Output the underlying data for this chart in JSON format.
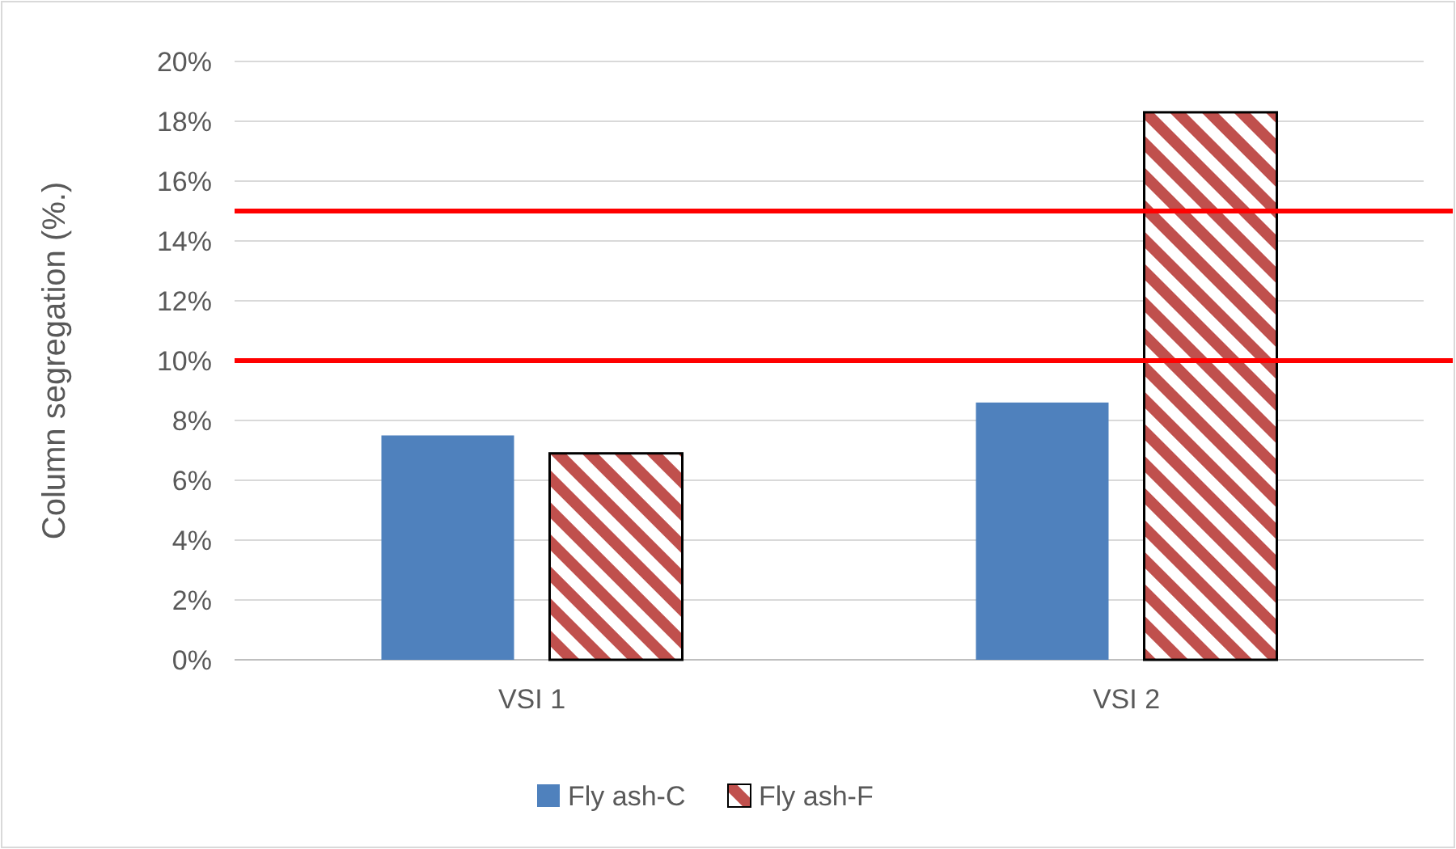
{
  "chart_data": {
    "type": "bar",
    "ylabel": "Column segregation (%.)",
    "categories": [
      "VSI 1",
      "VSI 2"
    ],
    "series": [
      {
        "name": "Fly ash-C",
        "color": "#4f81bd",
        "values": [
          7.5,
          8.6
        ]
      },
      {
        "name": "Fly ash-F",
        "color": "#c0504d",
        "values": [
          6.9,
          18.3
        ]
      }
    ],
    "ylim": [
      0,
      20
    ],
    "yticks": [
      {
        "value": 0,
        "label": "0%"
      },
      {
        "value": 2,
        "label": "2%"
      },
      {
        "value": 4,
        "label": "4%"
      },
      {
        "value": 6,
        "label": "6%"
      },
      {
        "value": 8,
        "label": "8%"
      },
      {
        "value": 10,
        "label": "10%"
      },
      {
        "value": 12,
        "label": "12%"
      },
      {
        "value": 14,
        "label": "14%"
      },
      {
        "value": 16,
        "label": "16%"
      },
      {
        "value": 18,
        "label": "18%"
      },
      {
        "value": 20,
        "label": "20%"
      }
    ],
    "grid": "y",
    "legend": "bottom",
    "ref_lines": [
      {
        "axis": "y",
        "value": 10,
        "color": "#ff0000"
      },
      {
        "axis": "y",
        "value": 15,
        "color": "#ff0000"
      }
    ]
  }
}
